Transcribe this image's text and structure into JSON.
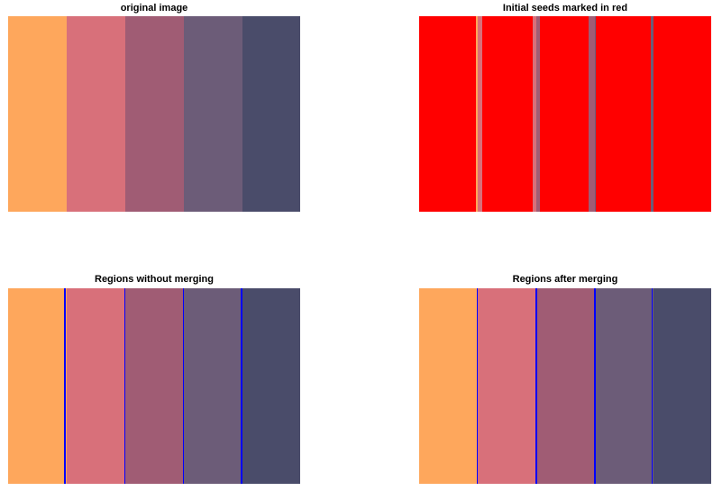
{
  "colors": {
    "stripe_colors": [
      "#FEA75C",
      "#D8707A",
      "#A05C74",
      "#6C5C78",
      "#4A4C6A"
    ],
    "seed_color": "#FF0000",
    "boundary_color": "#0000FF",
    "background": "#FFFFFF"
  },
  "panels": [
    {
      "id": "original",
      "title": "original image"
    },
    {
      "id": "seeds",
      "title": "Initial seeds marked in red"
    },
    {
      "id": "no-merge",
      "title": "Regions without merging"
    },
    {
      "id": "merged",
      "title": "Regions after merging"
    }
  ]
}
